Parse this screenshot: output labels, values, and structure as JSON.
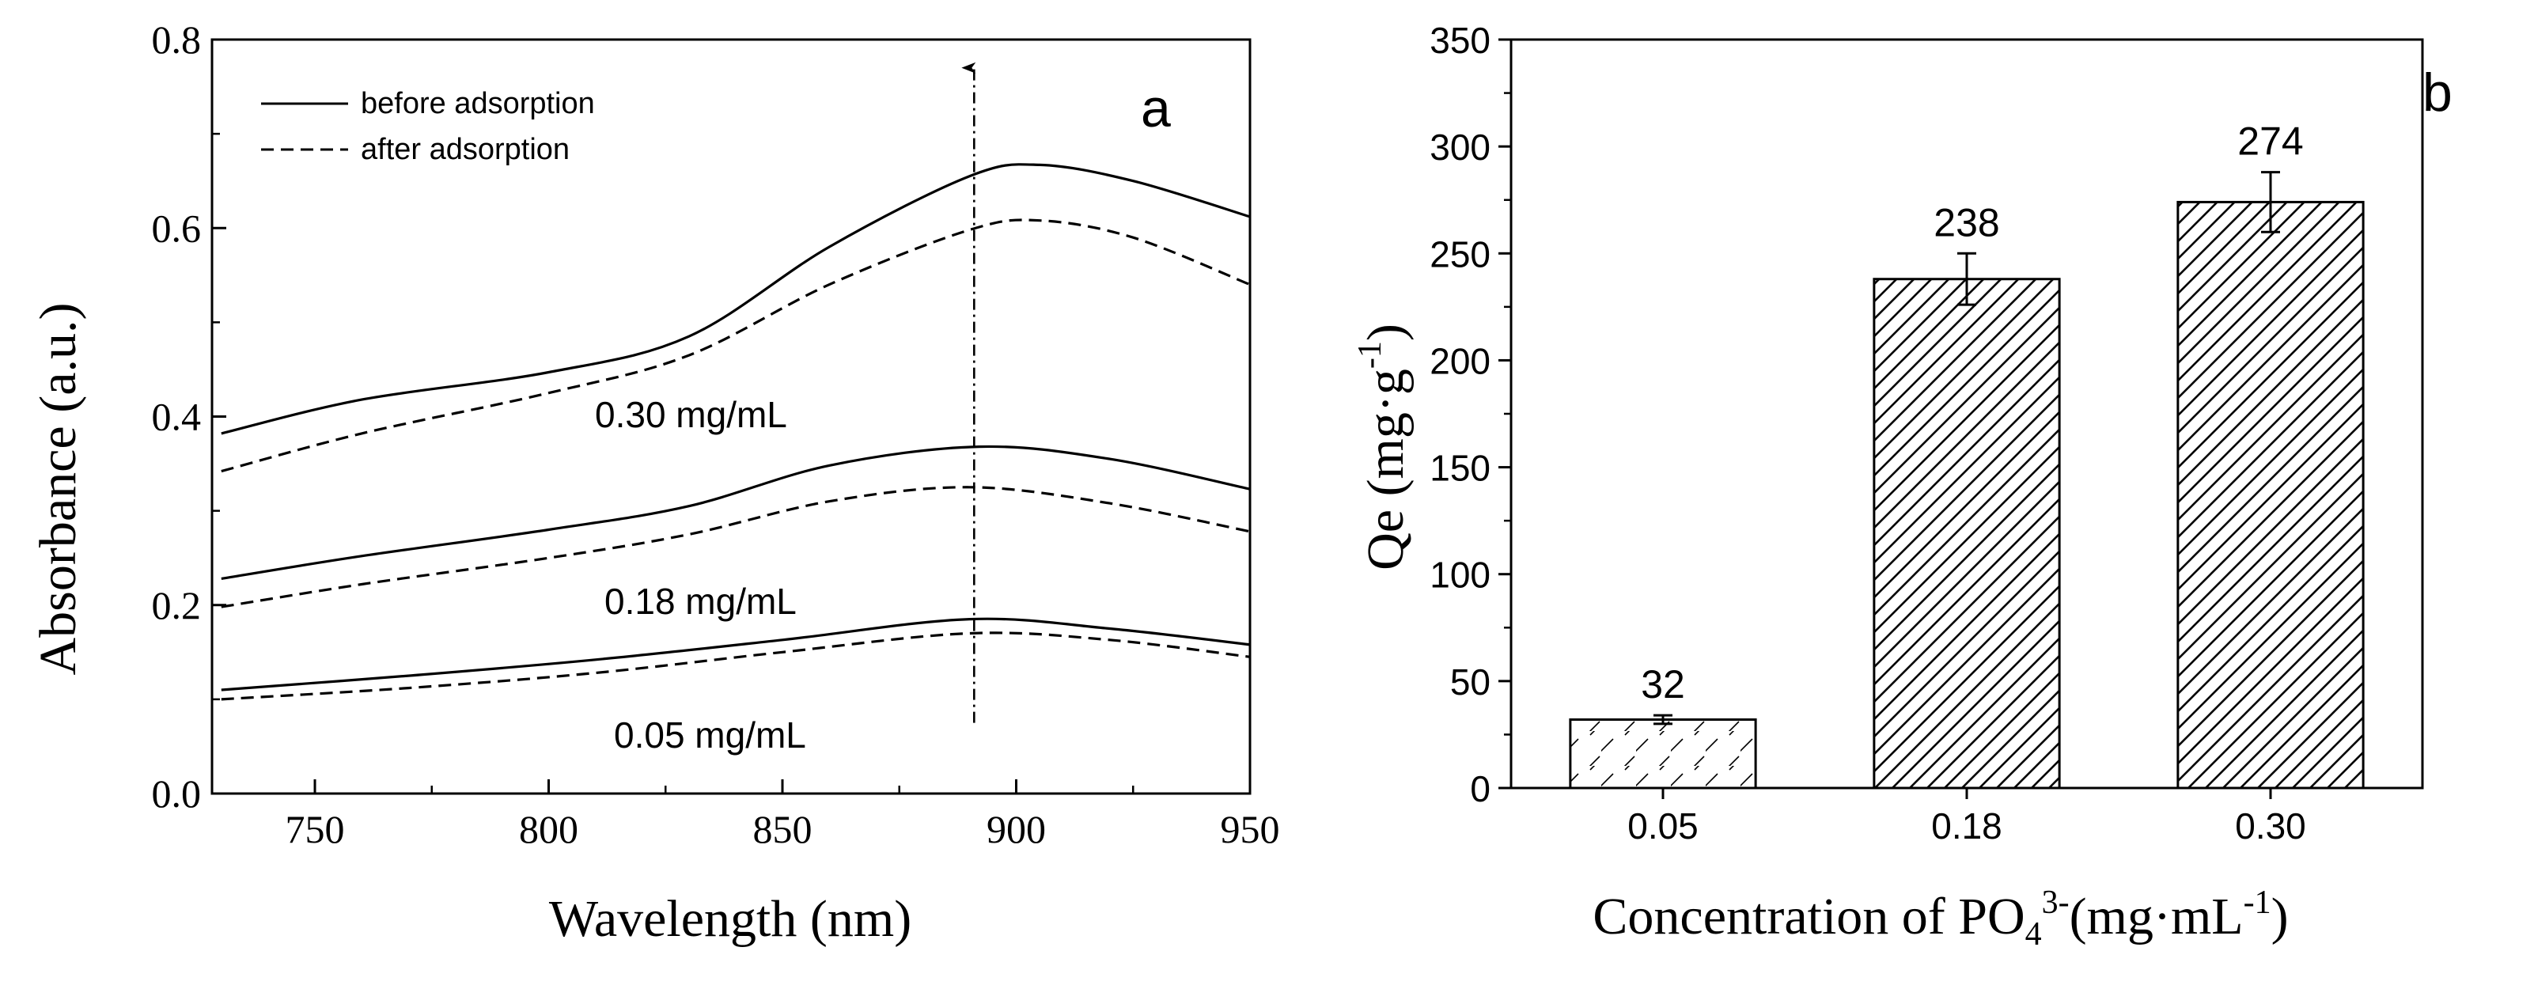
{
  "chart_data": [
    {
      "panel": "a",
      "type": "line",
      "panel_label": "a",
      "title": "",
      "xlabel": "Wavelength (nm)",
      "ylabel": "Absorbance (a.u.)",
      "xlim": [
        728,
        950
      ],
      "ylim": [
        0.0,
        0.8
      ],
      "xticks": [
        750,
        800,
        850,
        900,
        950
      ],
      "xtick_labels": [
        "750",
        "800",
        "850",
        "900",
        "950"
      ],
      "yticks": [
        0.0,
        0.2,
        0.4,
        0.6,
        0.8
      ],
      "ytick_labels": [
        "0.0",
        "0.2",
        "0.4",
        "0.6",
        "0.8"
      ],
      "grid": false,
      "legend": {
        "placement": "top-left",
        "entries": [
          {
            "label": "before adsorption",
            "style": "solid"
          },
          {
            "label": "after adsorption",
            "style": "dashed"
          }
        ]
      },
      "series": [
        {
          "name": "0.30 mg/mL before adsorption",
          "style": "solid",
          "x": [
            730,
            760,
            800,
            830,
            860,
            890,
            905,
            925,
            950
          ],
          "y": [
            0.382,
            0.418,
            0.447,
            0.485,
            0.58,
            0.655,
            0.667,
            0.65,
            0.612
          ]
        },
        {
          "name": "0.30 mg/mL after adsorption",
          "style": "dashed",
          "x": [
            730,
            760,
            800,
            830,
            860,
            890,
            905,
            925,
            950
          ],
          "y": [
            0.342,
            0.382,
            0.425,
            0.465,
            0.54,
            0.598,
            0.608,
            0.59,
            0.54
          ]
        },
        {
          "name": "0.18 mg/mL before adsorption",
          "style": "solid",
          "x": [
            730,
            760,
            800,
            830,
            860,
            892,
            920,
            950
          ],
          "y": [
            0.228,
            0.252,
            0.28,
            0.305,
            0.348,
            0.368,
            0.355,
            0.323
          ]
        },
        {
          "name": "0.18 mg/mL after adsorption",
          "style": "dashed",
          "x": [
            730,
            760,
            800,
            830,
            860,
            890,
            920,
            950
          ],
          "y": [
            0.198,
            0.222,
            0.25,
            0.275,
            0.31,
            0.325,
            0.308,
            0.278
          ]
        },
        {
          "name": "0.05 mg/mL before adsorption",
          "style": "solid",
          "x": [
            730,
            770,
            810,
            850,
            890,
            920,
            950
          ],
          "y": [
            0.11,
            0.125,
            0.142,
            0.163,
            0.185,
            0.175,
            0.158
          ]
        },
        {
          "name": "0.05 mg/mL after adsorption",
          "style": "dashed",
          "x": [
            730,
            770,
            810,
            850,
            890,
            920,
            950
          ],
          "y": [
            0.1,
            0.112,
            0.128,
            0.15,
            0.17,
            0.163,
            0.145
          ]
        }
      ],
      "annotations": [
        {
          "text": "0.30 mg/mL",
          "x": 800,
          "y": 0.395
        },
        {
          "text": "0.18 mg/mL",
          "x": 800,
          "y": 0.2
        },
        {
          "text": "0.05 mg/mL",
          "x": 800,
          "y": 0.06
        }
      ],
      "arrow": {
        "style": "dash-dot",
        "x": 891,
        "y_start": 0.075,
        "y_end": 0.77
      }
    },
    {
      "panel": "b",
      "type": "bar",
      "panel_label": "b",
      "title": "",
      "xlabel": "Concentration of PO4 3-(mg·mL-1)",
      "xlabel_parts": {
        "main": "Concentration of PO",
        "sub": "4",
        "sup": "3-",
        "unit": "(mg·mL",
        "unit_sup": "-1",
        "close": ")"
      },
      "ylabel": "Qe (mg·g-1)",
      "ylabel_parts": {
        "main": "Qe (mg·g",
        "sup": "-1",
        "close": ")"
      },
      "categories": [
        "0.05",
        "0.18",
        "0.30"
      ],
      "values": [
        32,
        238,
        274
      ],
      "errors": [
        2,
        12,
        14
      ],
      "data_labels": [
        "32",
        "238",
        "274"
      ],
      "ylim": [
        0,
        350
      ],
      "yticks": [
        0,
        50,
        100,
        150,
        200,
        250,
        300,
        350
      ],
      "ytick_labels": [
        "0",
        "50",
        "100",
        "150",
        "200",
        "250",
        "300",
        "350"
      ],
      "grid": false,
      "fill": "diagonal hatch"
    }
  ],
  "colors": {
    "ink": "#000000",
    "background": "#ffffff"
  }
}
